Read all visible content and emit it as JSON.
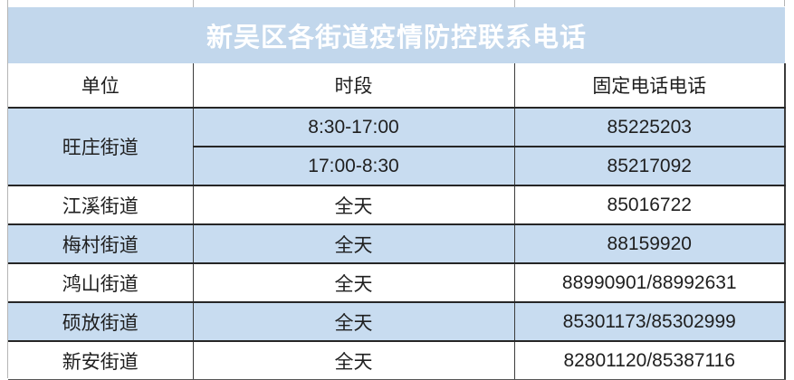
{
  "table": {
    "title": "新吴区各街道疫情防控联系电话",
    "columns": [
      "单位",
      "时段",
      "固定电话电话"
    ],
    "rows": [
      {
        "unit": "旺庄街道",
        "period": "8:30-17:00",
        "phone": "85225203"
      },
      {
        "period": "17:00-8:30",
        "phone": "85217092"
      },
      {
        "unit": "江溪街道",
        "period": "全天",
        "phone": "85016722"
      },
      {
        "unit": "梅村街道",
        "period": "全天",
        "phone": "88159920"
      },
      {
        "unit": "鸿山街道",
        "period": "全天",
        "phone": "88990901/88992631"
      },
      {
        "unit": "硕放街道",
        "period": "全天",
        "phone": "85301173/85302999"
      },
      {
        "unit": "新安街道",
        "period": "全天",
        "phone": "82801120/85387116"
      }
    ]
  },
  "colors": {
    "title_bg": "#c2d7ec",
    "band_bg": "#c8dcf0",
    "title_text": "#ffffff",
    "body_text": "#1f1f1f",
    "border_h": "#262626",
    "border_v": "#3c3c3c",
    "gridline": "#b5b5b5"
  }
}
